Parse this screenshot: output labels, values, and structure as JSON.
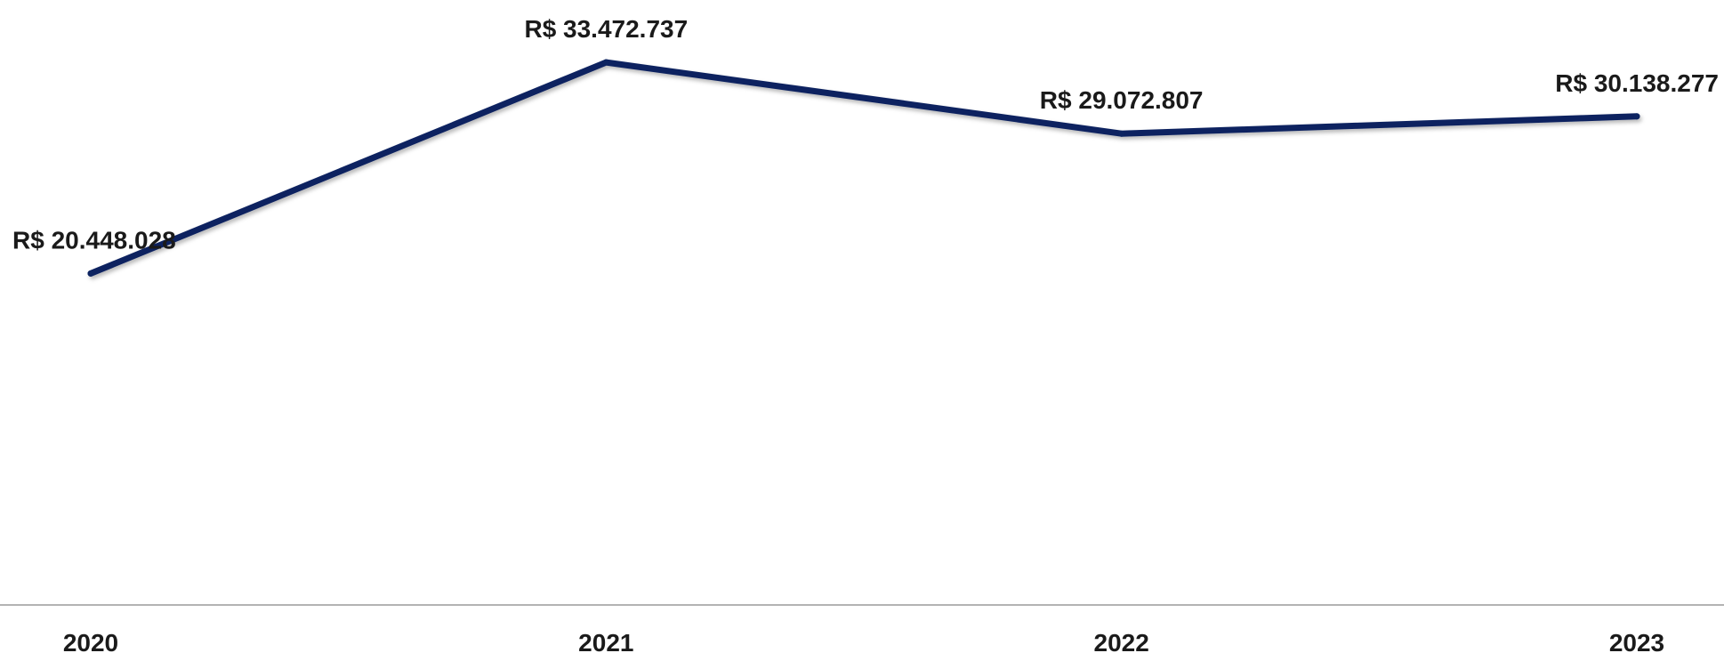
{
  "chart_data": {
    "type": "line",
    "categories": [
      "2020",
      "2021",
      "2022",
      "2023"
    ],
    "series": [
      {
        "values": [
          20448028,
          33472737,
          29072807,
          30138277
        ],
        "labels": [
          "R$ 20.448.028",
          "R$ 33.472.737",
          "R$ 29.072.807",
          "R$ 30.138.277"
        ],
        "color": "#0d2461"
      }
    ],
    "title": "",
    "xlabel": "",
    "ylabel": "",
    "ylim": [
      0,
      36000000
    ],
    "grid": false,
    "legend": "none",
    "axis_color": "#9a9a9a"
  }
}
